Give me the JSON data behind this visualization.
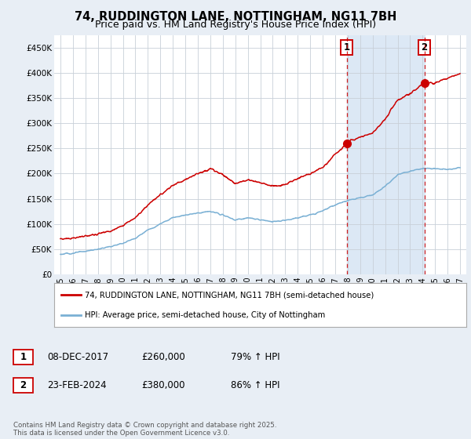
{
  "title": "74, RUDDINGTON LANE, NOTTINGHAM, NG11 7BH",
  "subtitle": "Price paid vs. HM Land Registry's House Price Index (HPI)",
  "bg_color": "#e8eef5",
  "plot_bg_color": "#ffffff",
  "shade_color": "#dce8f5",
  "red_color": "#cc0000",
  "blue_color": "#7ab0d4",
  "marker1_date_x": 2017.93,
  "marker2_date_x": 2024.14,
  "legend1": "74, RUDDINGTON LANE, NOTTINGHAM, NG11 7BH (semi-detached house)",
  "legend2": "HPI: Average price, semi-detached house, City of Nottingham",
  "table_row1": [
    "1",
    "08-DEC-2017",
    "£260,000",
    "79% ↑ HPI"
  ],
  "table_row2": [
    "2",
    "23-FEB-2024",
    "£380,000",
    "86% ↑ HPI"
  ],
  "footer": "Contains HM Land Registry data © Crown copyright and database right 2025.\nThis data is licensed under the Open Government Licence v3.0.",
  "ylim": [
    0,
    475000
  ],
  "yticks": [
    0,
    50000,
    100000,
    150000,
    200000,
    250000,
    300000,
    350000,
    400000,
    450000
  ],
  "ytick_labels": [
    "£0",
    "£50K",
    "£100K",
    "£150K",
    "£200K",
    "£250K",
    "£300K",
    "£350K",
    "£400K",
    "£450K"
  ],
  "xlim_start": 1994.5,
  "xlim_end": 2027.5,
  "xticks": [
    1995,
    1996,
    1997,
    1998,
    1999,
    2000,
    2001,
    2002,
    2003,
    2004,
    2005,
    2006,
    2007,
    2008,
    2009,
    2010,
    2011,
    2012,
    2013,
    2014,
    2015,
    2016,
    2017,
    2018,
    2019,
    2020,
    2021,
    2022,
    2023,
    2024,
    2025,
    2026,
    2027
  ],
  "sale1_y": 260000,
  "sale2_y": 380000,
  "hatch_start": 2024.9
}
